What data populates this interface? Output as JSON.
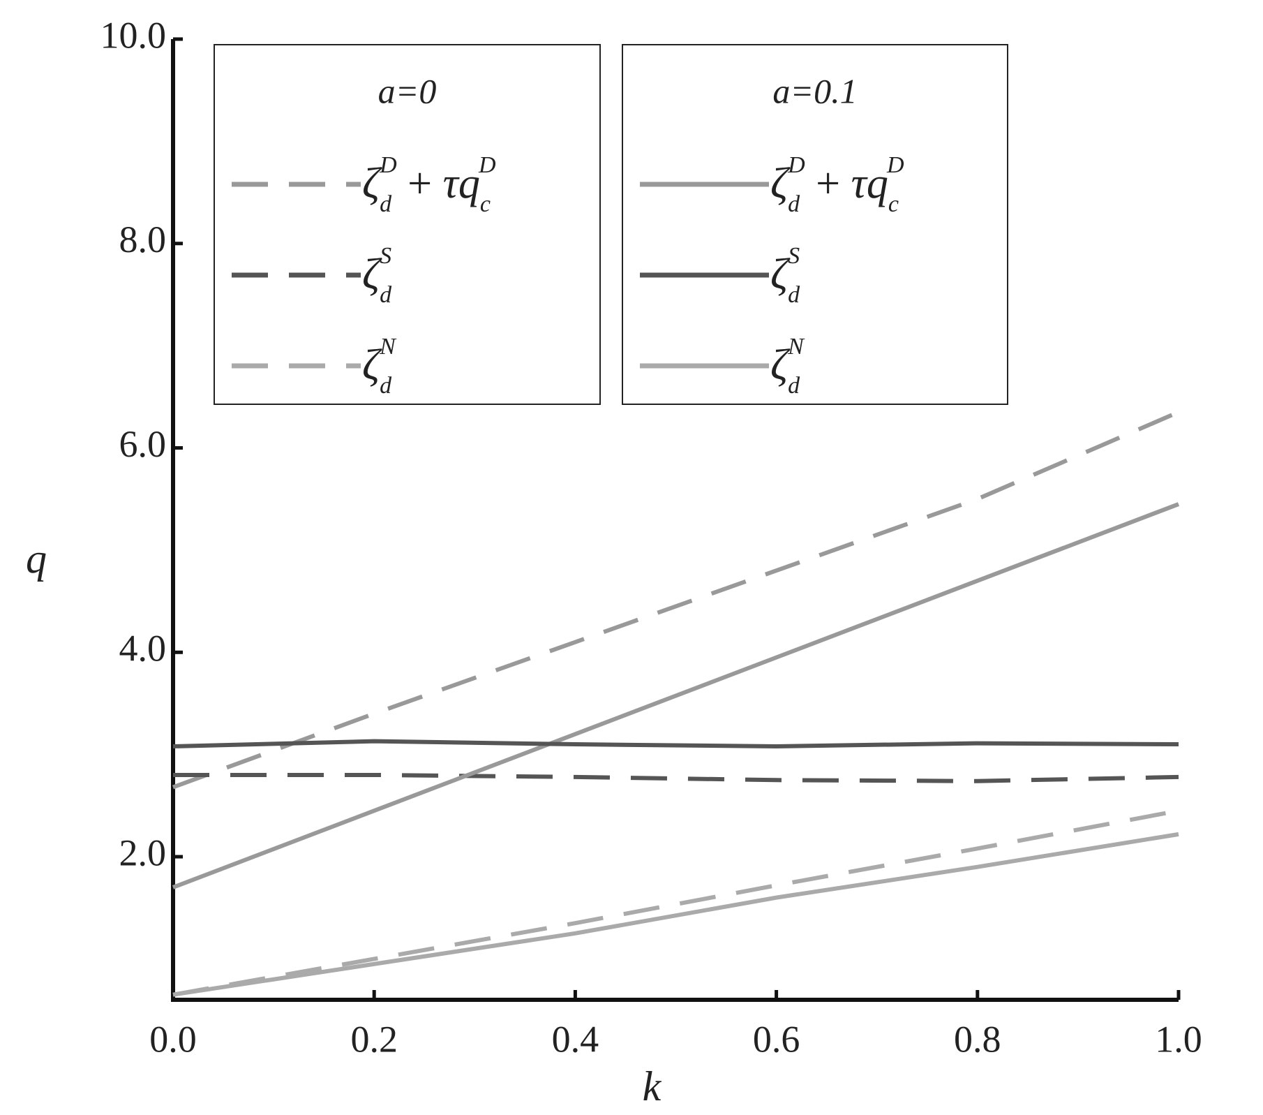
{
  "chart_data": {
    "type": "line",
    "x_label": "k",
    "y_label": "q",
    "x": [
      0,
      0.2,
      0.4,
      0.6,
      0.8,
      1.0
    ],
    "xlim": [
      0,
      1
    ],
    "ylim": [
      0.6,
      10
    ],
    "xticks": [
      {
        "value": 0,
        "label": "0.0"
      },
      {
        "value": 0.2,
        "label": "0.2"
      },
      {
        "value": 0.4,
        "label": "0.4"
      },
      {
        "value": 0.6,
        "label": "0.6"
      },
      {
        "value": 0.8,
        "label": "0.8"
      },
      {
        "value": 1.0,
        "label": "1.0"
      }
    ],
    "yticks": [
      {
        "value": 2,
        "label": "2.0"
      },
      {
        "value": 4,
        "label": "4.0"
      },
      {
        "value": 6,
        "label": "6.0"
      },
      {
        "value": 8,
        "label": "8.0"
      },
      {
        "value": 10,
        "label": "10.0"
      }
    ],
    "series": [
      {
        "name": "ζ_d^D + τq_c^D",
        "group": "a=0",
        "color": "#999999",
        "dashed": true,
        "values": [
          2.68,
          3.4,
          4.1,
          4.8,
          5.5,
          6.35
        ]
      },
      {
        "name": "ζ_d^S",
        "group": "a=0",
        "color": "#555555",
        "dashed": true,
        "values": [
          2.8,
          2.8,
          2.78,
          2.75,
          2.74,
          2.78
        ]
      },
      {
        "name": "ζ_d^N",
        "group": "a=0",
        "color": "#aaaaaa",
        "dashed": true,
        "values": [
          0.65,
          1.0,
          1.35,
          1.72,
          2.08,
          2.45
        ]
      },
      {
        "name": "ζ_d^D + τq_c^D",
        "group": "a=0.1",
        "color": "#999999",
        "dashed": false,
        "values": [
          1.7,
          2.45,
          3.2,
          3.95,
          4.7,
          5.45
        ]
      },
      {
        "name": "ζ_d^S",
        "group": "a=0.1",
        "color": "#555555",
        "dashed": false,
        "values": [
          3.08,
          3.13,
          3.1,
          3.08,
          3.11,
          3.1
        ]
      },
      {
        "name": "ζ_d^N",
        "group": "a=0.1",
        "color": "#aaaaaa",
        "dashed": false,
        "values": [
          0.65,
          0.95,
          1.25,
          1.6,
          1.9,
          2.22
        ]
      }
    ]
  }
}
